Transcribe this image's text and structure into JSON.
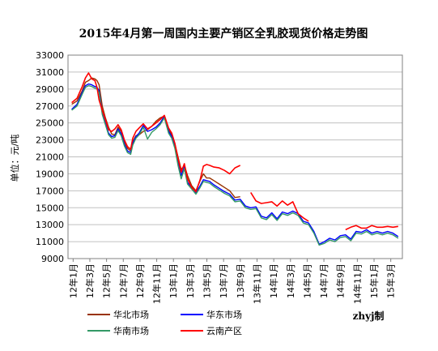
{
  "chart_data": {
    "type": "line",
    "title": "2015年4月第一周国内主要产销区全乳胶现货价格走势图",
    "ylabel": "单位：元/吨",
    "xlabel": "",
    "ylim": [
      9000,
      33000
    ],
    "y_ticks": [
      "33000",
      "31000",
      "29000",
      "27000",
      "25000",
      "23000",
      "21000",
      "19000",
      "17000",
      "15000",
      "13000",
      "11000",
      "9000"
    ],
    "x_ticks": [
      "12年1月",
      "12年3月",
      "12年5月",
      "12年7月",
      "12年9月",
      "12年11月",
      "13年1月",
      "13年3月",
      "13年5月",
      "13年7月",
      "13年9月",
      "13年11月",
      "14年1月",
      "14年3月",
      "14年5月",
      "14年7月",
      "14年9月",
      "14年11月",
      "15年1月",
      "15年3月"
    ],
    "grid": "horizontal",
    "legend_position": "bottom",
    "credit": "zhyj制",
    "series": [
      {
        "name": "华北市场",
        "color": "#993300",
        "values": [
          [
            0,
            27200
          ],
          [
            0.5,
            27600
          ],
          [
            1,
            28800
          ],
          [
            1.3,
            29800
          ],
          [
            1.6,
            30000
          ],
          [
            1.9,
            30300
          ],
          [
            2.2,
            30200
          ],
          [
            2.4,
            30000
          ],
          [
            2.6,
            29500
          ],
          [
            2.9,
            27000
          ],
          [
            3.2,
            25600
          ],
          [
            3.5,
            24500
          ],
          [
            3.8,
            23700
          ],
          [
            4.1,
            23600
          ],
          [
            4.4,
            24500
          ],
          [
            4.7,
            24000
          ],
          [
            5,
            22800
          ],
          [
            5.3,
            22000
          ],
          [
            5.6,
            21700
          ],
          [
            5.8,
            22800
          ],
          [
            6.1,
            23500
          ],
          [
            6.4,
            23600
          ],
          [
            6.8,
            24000
          ],
          [
            7.2,
            24200
          ],
          [
            7.6,
            24600
          ],
          [
            8,
            25200
          ],
          [
            8.4,
            25600
          ],
          [
            8.8,
            25800
          ],
          [
            9.2,
            24200
          ],
          [
            9.5,
            23600
          ],
          [
            9.8,
            22500
          ],
          [
            10.1,
            21000
          ],
          [
            10.4,
            19500
          ],
          [
            10.7,
            20000
          ],
          [
            11,
            18800
          ],
          [
            11.4,
            17600
          ],
          [
            11.8,
            17000
          ],
          [
            12.2,
            18200
          ],
          [
            12.5,
            19000
          ],
          [
            12.8,
            18500
          ],
          [
            13.1,
            18500
          ],
          [
            13.5,
            18200
          ],
          [
            14,
            17800
          ],
          [
            14.5,
            17400
          ],
          [
            15,
            17000
          ],
          [
            15.5,
            16200
          ],
          [
            16,
            16300
          ]
        ]
      },
      {
        "name": "华东市场",
        "color": "#0000ff",
        "values": [
          [
            0,
            26600
          ],
          [
            0.5,
            27200
          ],
          [
            1,
            28600
          ],
          [
            1.3,
            29400
          ],
          [
            1.6,
            29600
          ],
          [
            1.9,
            29500
          ],
          [
            2.2,
            29300
          ],
          [
            2.4,
            29200
          ],
          [
            2.6,
            28800
          ],
          [
            2.9,
            26200
          ],
          [
            3.2,
            25000
          ],
          [
            3.5,
            23800
          ],
          [
            3.8,
            23400
          ],
          [
            4.1,
            23500
          ],
          [
            4.4,
            24300
          ],
          [
            4.7,
            23700
          ],
          [
            5,
            22500
          ],
          [
            5.3,
            21700
          ],
          [
            5.6,
            21500
          ],
          [
            5.8,
            22600
          ],
          [
            6.1,
            23400
          ],
          [
            6.4,
            23800
          ],
          [
            6.8,
            24700
          ],
          [
            7.2,
            24000
          ],
          [
            7.6,
            24200
          ],
          [
            8,
            24500
          ],
          [
            8.4,
            25000
          ],
          [
            8.8,
            25800
          ],
          [
            9.2,
            24000
          ],
          [
            9.5,
            23400
          ],
          [
            9.8,
            22200
          ],
          [
            10.1,
            20500
          ],
          [
            10.4,
            18800
          ],
          [
            10.7,
            19800
          ],
          [
            11,
            18000
          ],
          [
            11.4,
            17400
          ],
          [
            11.8,
            16800
          ],
          [
            12.2,
            17600
          ],
          [
            12.5,
            18300
          ],
          [
            12.8,
            18200
          ],
          [
            13.1,
            18100
          ],
          [
            13.5,
            17700
          ],
          [
            14,
            17300
          ],
          [
            14.5,
            16900
          ],
          [
            15,
            16600
          ],
          [
            15.5,
            15900
          ],
          [
            16,
            16000
          ],
          [
            16.5,
            15200
          ],
          [
            17,
            15000
          ],
          [
            17.5,
            15100
          ],
          [
            18,
            14000
          ],
          [
            18.5,
            13800
          ],
          [
            19,
            14400
          ],
          [
            19.5,
            13700
          ],
          [
            20,
            14500
          ],
          [
            20.5,
            14300
          ],
          [
            21,
            14600
          ],
          [
            21.5,
            14300
          ],
          [
            22,
            13400
          ],
          [
            22.5,
            13200
          ],
          [
            23,
            12200
          ],
          [
            23.5,
            10700
          ],
          [
            24,
            11000
          ],
          [
            24.5,
            11400
          ],
          [
            25,
            11200
          ],
          [
            25.5,
            11700
          ],
          [
            26,
            11800
          ],
          [
            26.5,
            11300
          ],
          [
            27,
            12200
          ],
          [
            27.5,
            12100
          ],
          [
            28,
            12400
          ],
          [
            28.5,
            12000
          ],
          [
            29,
            12200
          ],
          [
            29.5,
            12000
          ],
          [
            30,
            12200
          ],
          [
            30.5,
            12000
          ],
          [
            31,
            11600
          ]
        ]
      },
      {
        "name": "华南市场",
        "color": "#339966",
        "values": [
          [
            0,
            26500
          ],
          [
            0.5,
            27000
          ],
          [
            1,
            28400
          ],
          [
            1.3,
            29200
          ],
          [
            1.6,
            29400
          ],
          [
            1.9,
            29300
          ],
          [
            2.2,
            29100
          ],
          [
            2.4,
            29000
          ],
          [
            2.6,
            28600
          ],
          [
            2.9,
            26000
          ],
          [
            3.2,
            24800
          ],
          [
            3.5,
            23600
          ],
          [
            3.8,
            23200
          ],
          [
            4.1,
            23300
          ],
          [
            4.4,
            24100
          ],
          [
            4.7,
            23500
          ],
          [
            5,
            22300
          ],
          [
            5.3,
            21500
          ],
          [
            5.6,
            21300
          ],
          [
            5.8,
            22400
          ],
          [
            6.1,
            23200
          ],
          [
            6.4,
            23600
          ],
          [
            6.8,
            24500
          ],
          [
            7.2,
            23100
          ],
          [
            7.6,
            23900
          ],
          [
            8,
            24300
          ],
          [
            8.4,
            24800
          ],
          [
            8.8,
            25600
          ],
          [
            9.2,
            23800
          ],
          [
            9.5,
            23200
          ],
          [
            9.8,
            22000
          ],
          [
            10.1,
            20000
          ],
          [
            10.4,
            18400
          ],
          [
            10.7,
            19600
          ],
          [
            11,
            17800
          ],
          [
            11.4,
            17200
          ],
          [
            11.8,
            16600
          ],
          [
            12.2,
            17400
          ],
          [
            12.5,
            18100
          ],
          [
            12.8,
            18000
          ],
          [
            13.1,
            17900
          ],
          [
            13.5,
            17500
          ],
          [
            14,
            17100
          ],
          [
            14.5,
            16700
          ],
          [
            15,
            16400
          ],
          [
            15.5,
            15700
          ],
          [
            16,
            15800
          ],
          [
            16.5,
            15000
          ],
          [
            17,
            14800
          ],
          [
            17.5,
            14900
          ],
          [
            18,
            13800
          ],
          [
            18.5,
            13600
          ],
          [
            19,
            14200
          ],
          [
            19.5,
            13500
          ],
          [
            20,
            14300
          ],
          [
            20.5,
            14100
          ],
          [
            21,
            14400
          ],
          [
            21.5,
            14100
          ],
          [
            22,
            13200
          ],
          [
            22.5,
            13000
          ],
          [
            23,
            12000
          ],
          [
            23.5,
            10600
          ],
          [
            24,
            10800
          ],
          [
            24.5,
            11200
          ],
          [
            25,
            11000
          ],
          [
            25.5,
            11500
          ],
          [
            26,
            11600
          ],
          [
            26.5,
            11100
          ],
          [
            27,
            12000
          ],
          [
            27.5,
            11900
          ],
          [
            28,
            12200
          ],
          [
            28.5,
            11800
          ],
          [
            29,
            12000
          ],
          [
            29.5,
            11800
          ],
          [
            30,
            12000
          ],
          [
            30.5,
            11800
          ],
          [
            31,
            11400
          ]
        ]
      },
      {
        "name": "云南产区",
        "color": "#ff0000",
        "values": [
          [
            0,
            27400
          ],
          [
            0.5,
            27900
          ],
          [
            1,
            29300
          ],
          [
            1.3,
            30300
          ],
          [
            1.6,
            30900
          ],
          [
            1.9,
            30200
          ],
          [
            2.2,
            30000
          ],
          [
            2.4,
            29200
          ],
          [
            2.6,
            27700
          ],
          [
            2.9,
            26500
          ],
          [
            3.2,
            25400
          ],
          [
            3.5,
            24200
          ],
          [
            3.8,
            24000
          ],
          [
            4.1,
            24300
          ],
          [
            4.4,
            24800
          ],
          [
            4.7,
            24200
          ],
          [
            5,
            23000
          ],
          [
            5.3,
            22200
          ],
          [
            5.6,
            21900
          ],
          [
            5.8,
            23200
          ],
          [
            6.1,
            24000
          ],
          [
            6.4,
            24400
          ],
          [
            6.8,
            24900
          ],
          [
            7.2,
            24300
          ],
          [
            7.6,
            24600
          ],
          [
            8,
            25000
          ],
          [
            8.4,
            25400
          ],
          [
            8.8,
            25900
          ],
          [
            9.2,
            24400
          ],
          [
            9.5,
            23800
          ],
          [
            9.8,
            22600
          ],
          [
            10.1,
            20800
          ],
          [
            10.4,
            19200
          ],
          [
            10.7,
            20200
          ],
          [
            11,
            18400
          ],
          [
            11.4,
            17400
          ],
          [
            11.8,
            16900
          ],
          [
            12.2,
            18300
          ],
          [
            12.5,
            19900
          ],
          [
            12.8,
            20100
          ],
          [
            13.1,
            20000
          ],
          [
            13.5,
            19800
          ],
          [
            14,
            19700
          ],
          [
            14.5,
            19400
          ],
          [
            15,
            19000
          ],
          [
            15.5,
            19700
          ],
          [
            16,
            20000
          ],
          [
            16.5,
            null
          ],
          [
            17,
            16800
          ],
          [
            17.5,
            15800
          ],
          [
            18,
            15500
          ],
          [
            18.5,
            15600
          ],
          [
            19,
            15700
          ],
          [
            19.5,
            15200
          ],
          [
            20,
            15800
          ],
          [
            20.5,
            15300
          ],
          [
            21,
            15700
          ],
          [
            21.5,
            14300
          ],
          [
            22,
            13800
          ],
          [
            22.5,
            13400
          ],
          [
            23,
            null
          ],
          [
            26,
            12400
          ],
          [
            26.5,
            12700
          ],
          [
            27,
            12900
          ],
          [
            27.5,
            12600
          ],
          [
            28,
            12600
          ],
          [
            28.5,
            12900
          ],
          [
            29,
            12700
          ],
          [
            29.5,
            12700
          ],
          [
            30,
            12800
          ],
          [
            30.5,
            12700
          ],
          [
            31,
            12800
          ]
        ]
      }
    ]
  }
}
